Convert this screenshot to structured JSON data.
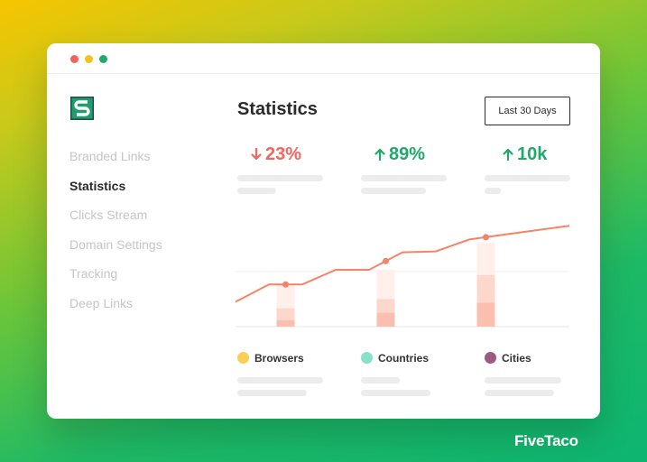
{
  "window_controls": [
    "close",
    "minimize",
    "maximize"
  ],
  "sidebar": {
    "items": [
      {
        "label": "Branded Links",
        "active": false
      },
      {
        "label": "Statistics",
        "active": true
      },
      {
        "label": "Clicks Stream",
        "active": false
      },
      {
        "label": "Domain Settings",
        "active": false
      },
      {
        "label": "Tracking",
        "active": false
      },
      {
        "label": "Deep Links",
        "active": false
      }
    ]
  },
  "header": {
    "title": "Statistics",
    "range_button": "Last 30 Days"
  },
  "stats": [
    {
      "direction": "down",
      "value": "23%",
      "color": "#f2665c"
    },
    {
      "direction": "up",
      "value": "89%",
      "color": "#1faa6a"
    },
    {
      "direction": "up",
      "value": "10k",
      "color": "#1faa6a"
    }
  ],
  "legend": [
    {
      "label": "Browsers",
      "color": "#f9cf55"
    },
    {
      "label": "Countries",
      "color": "#86e2c6"
    },
    {
      "label": "Cities",
      "color": "#9c5a80"
    }
  ],
  "chart_data": {
    "type": "line",
    "line_color": "#f48467",
    "x": [
      0,
      1,
      2,
      3,
      4,
      5,
      6,
      7,
      8,
      9,
      10
    ],
    "values": [
      0.27,
      0.46,
      0.46,
      0.62,
      0.62,
      0.81,
      0.82,
      0.95,
      1.0,
      1.05,
      1.1
    ],
    "highlighted_points": [
      1.5,
      4.5,
      7.5
    ],
    "bars": [
      {
        "x": 1.5,
        "segments": [
          0.07,
          0.2,
          0.45
        ]
      },
      {
        "x": 4.5,
        "segments": [
          0.15,
          0.3,
          0.62
        ]
      },
      {
        "x": 7.5,
        "segments": [
          0.26,
          0.56,
          0.92
        ]
      }
    ],
    "ylim": [
      0,
      1.2
    ],
    "grid": true
  },
  "brand": {
    "name": "FiveTaco"
  }
}
